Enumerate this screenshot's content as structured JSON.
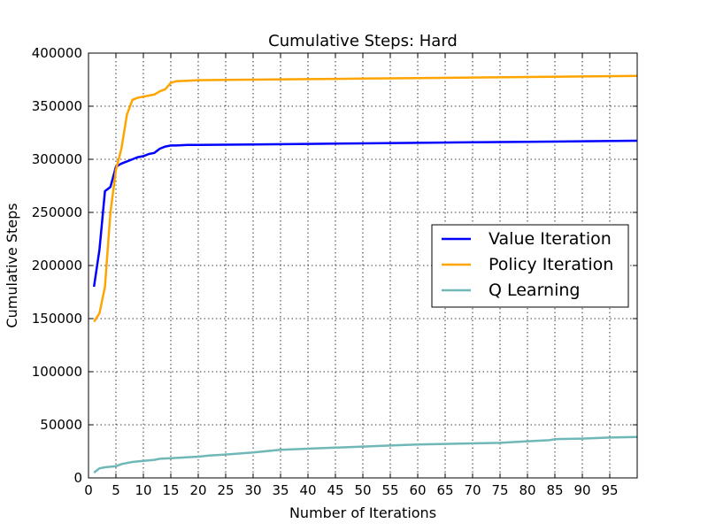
{
  "chart_data": {
    "type": "line",
    "title": "Cumulative Steps: Hard",
    "xlabel": "Number of Iterations",
    "ylabel": "Cumulative Steps",
    "xlim": [
      0,
      100
    ],
    "ylim": [
      0,
      400000
    ],
    "xticks": [
      0,
      5,
      10,
      15,
      20,
      25,
      30,
      35,
      40,
      45,
      50,
      55,
      60,
      65,
      70,
      75,
      80,
      85,
      90,
      95
    ],
    "yticks": [
      0,
      50000,
      100000,
      150000,
      200000,
      250000,
      300000,
      350000,
      400000
    ],
    "grid": true,
    "legend_position": "center-right",
    "series": [
      {
        "name": "Value Iteration",
        "color": "#0000ff",
        "points": [
          [
            1,
            180000
          ],
          [
            2,
            215000
          ],
          [
            3,
            270000
          ],
          [
            4,
            274000
          ],
          [
            5,
            293000
          ],
          [
            6,
            296000
          ],
          [
            7,
            298000
          ],
          [
            8,
            300000
          ],
          [
            9,
            302000
          ],
          [
            10,
            303000
          ],
          [
            11,
            305000
          ],
          [
            12,
            306000
          ],
          [
            13,
            310000
          ],
          [
            14,
            312000
          ],
          [
            15,
            313000
          ],
          [
            16,
            313000
          ],
          [
            18,
            313500
          ],
          [
            20,
            313500
          ],
          [
            30,
            314000
          ],
          [
            40,
            314500
          ],
          [
            50,
            315000
          ],
          [
            60,
            315500
          ],
          [
            70,
            316000
          ],
          [
            80,
            316500
          ],
          [
            90,
            317000
          ],
          [
            100,
            317500
          ]
        ]
      },
      {
        "name": "Policy Iteration",
        "color": "#ffa500",
        "points": [
          [
            1,
            147000
          ],
          [
            2,
            155000
          ],
          [
            3,
            180000
          ],
          [
            4,
            250000
          ],
          [
            5,
            290000
          ],
          [
            6,
            310000
          ],
          [
            7,
            342000
          ],
          [
            8,
            356000
          ],
          [
            9,
            358000
          ],
          [
            10,
            359000
          ],
          [
            11,
            360000
          ],
          [
            12,
            361000
          ],
          [
            13,
            364000
          ],
          [
            14,
            366000
          ],
          [
            15,
            372000
          ],
          [
            16,
            373500
          ],
          [
            18,
            374000
          ],
          [
            20,
            374500
          ],
          [
            30,
            375000
          ],
          [
            40,
            375500
          ],
          [
            50,
            376000
          ],
          [
            60,
            376500
          ],
          [
            70,
            377000
          ],
          [
            80,
            377500
          ],
          [
            90,
            378000
          ],
          [
            100,
            378500
          ]
        ]
      },
      {
        "name": "Q Learning",
        "color": "#70b8b8",
        "points": [
          [
            1,
            5000
          ],
          [
            2,
            9000
          ],
          [
            3,
            10000
          ],
          [
            4,
            10500
          ],
          [
            5,
            11000
          ],
          [
            6,
            13000
          ],
          [
            7,
            14000
          ],
          [
            8,
            15000
          ],
          [
            9,
            15500
          ],
          [
            10,
            16000
          ],
          [
            12,
            17000
          ],
          [
            13,
            18000
          ],
          [
            15,
            18500
          ],
          [
            20,
            20000
          ],
          [
            22,
            21000
          ],
          [
            25,
            22000
          ],
          [
            30,
            24000
          ],
          [
            35,
            26500
          ],
          [
            40,
            27500
          ],
          [
            45,
            28500
          ],
          [
            50,
            29500
          ],
          [
            55,
            30500
          ],
          [
            60,
            31500
          ],
          [
            65,
            32000
          ],
          [
            70,
            32500
          ],
          [
            75,
            33000
          ],
          [
            80,
            34500
          ],
          [
            84,
            35500
          ],
          [
            85,
            36500
          ],
          [
            90,
            37000
          ],
          [
            95,
            38000
          ],
          [
            100,
            38500
          ]
        ]
      }
    ]
  }
}
